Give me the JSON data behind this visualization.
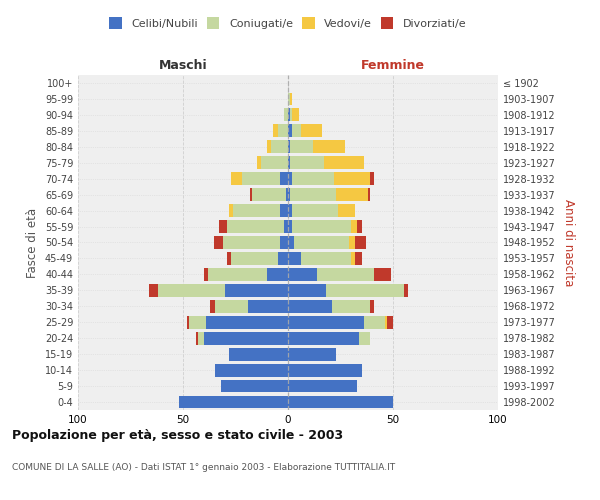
{
  "age_groups": [
    "0-4",
    "5-9",
    "10-14",
    "15-19",
    "20-24",
    "25-29",
    "30-34",
    "35-39",
    "40-44",
    "45-49",
    "50-54",
    "55-59",
    "60-64",
    "65-69",
    "70-74",
    "75-79",
    "80-84",
    "85-89",
    "90-94",
    "95-99",
    "100+"
  ],
  "birth_years": [
    "1998-2002",
    "1993-1997",
    "1988-1992",
    "1983-1987",
    "1978-1982",
    "1973-1977",
    "1968-1972",
    "1963-1967",
    "1958-1962",
    "1953-1957",
    "1948-1952",
    "1943-1947",
    "1938-1942",
    "1933-1937",
    "1928-1932",
    "1923-1927",
    "1918-1922",
    "1913-1917",
    "1908-1912",
    "1903-1907",
    "≤ 1902"
  ],
  "males": {
    "celibi": [
      52,
      32,
      35,
      28,
      40,
      39,
      19,
      30,
      10,
      5,
      4,
      2,
      4,
      1,
      4,
      0,
      0,
      0,
      0,
      0,
      0
    ],
    "coniugati": [
      0,
      0,
      0,
      0,
      3,
      8,
      16,
      32,
      28,
      22,
      27,
      27,
      22,
      16,
      18,
      13,
      8,
      5,
      2,
      0,
      0
    ],
    "vedovi": [
      0,
      0,
      0,
      0,
      0,
      0,
      0,
      0,
      0,
      0,
      0,
      0,
      2,
      0,
      5,
      2,
      2,
      2,
      0,
      0,
      0
    ],
    "divorziati": [
      0,
      0,
      0,
      0,
      1,
      1,
      2,
      4,
      2,
      2,
      4,
      4,
      0,
      1,
      0,
      0,
      0,
      0,
      0,
      0,
      0
    ]
  },
  "females": {
    "nubili": [
      50,
      33,
      35,
      23,
      34,
      36,
      21,
      18,
      14,
      6,
      3,
      2,
      2,
      1,
      2,
      1,
      1,
      2,
      1,
      0,
      0
    ],
    "coniugate": [
      0,
      0,
      0,
      0,
      5,
      10,
      18,
      37,
      27,
      24,
      26,
      28,
      22,
      22,
      20,
      16,
      11,
      4,
      1,
      1,
      0
    ],
    "vedove": [
      0,
      0,
      0,
      0,
      0,
      1,
      0,
      0,
      0,
      2,
      3,
      3,
      8,
      15,
      17,
      19,
      15,
      10,
      3,
      1,
      0
    ],
    "divorziate": [
      0,
      0,
      0,
      0,
      0,
      3,
      2,
      2,
      8,
      3,
      5,
      2,
      0,
      1,
      2,
      0,
      0,
      0,
      0,
      0,
      0
    ]
  },
  "colors": {
    "celibi": "#4472c4",
    "coniugati": "#c5d8a0",
    "vedovi": "#f5c842",
    "divorziati": "#c0392b"
  },
  "xlim": 100,
  "title": "Popolazione per età, sesso e stato civile - 2003",
  "subtitle": "COMUNE DI LA SALLE (AO) - Dati ISTAT 1° gennaio 2003 - Elaborazione TUTTITALIA.IT",
  "ylabel_left": "Fasce di età",
  "ylabel_right": "Anni di nascita",
  "xlabel_left": "Maschi",
  "xlabel_right": "Femmine",
  "bg_color": "#ffffff",
  "plot_bg": "#efefef",
  "grid_color": "#cccccc",
  "bar_height": 0.8
}
